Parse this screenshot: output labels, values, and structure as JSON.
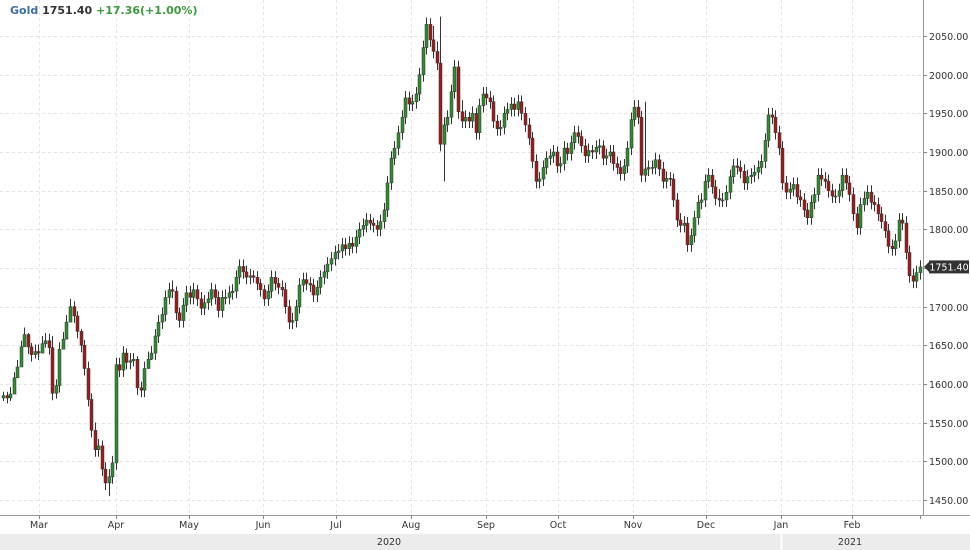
{
  "header": {
    "symbol": "Gold",
    "price": "1751.40",
    "change": "+17.36",
    "change_pct": "(+1.00%)"
  },
  "chart_data": {
    "type": "candlestick",
    "title": "Gold",
    "ylim": [
      1430,
      2090
    ],
    "y_ticks": [
      "2050.00",
      "2000.00",
      "1950.00",
      "1900.00",
      "1850.00",
      "1800.00",
      "1750.00",
      "1700.00",
      "1650.00",
      "1600.00",
      "1550.00",
      "1500.00",
      "1450.00"
    ],
    "y_tick_values": [
      2050,
      2000,
      1950,
      1900,
      1850,
      1800,
      1750,
      1700,
      1650,
      1600,
      1550,
      1500,
      1450
    ],
    "last_price_label": "1751.40",
    "last_price": 1751.4,
    "month_labels": [
      "Mar",
      "Apr",
      "May",
      "Jun",
      "Jul",
      "Aug",
      "Sep",
      "Oct",
      "Nov",
      "Dec",
      "Jan",
      "Feb"
    ],
    "year_labels": [
      "2020",
      "2021"
    ],
    "grid": true,
    "colors": {
      "up": "#2e8b2e",
      "down": "#9b1c1c",
      "wick": "#333333",
      "grid": "#e3e3e3",
      "axis": "#888888",
      "last_bg": "#333333"
    },
    "closes": [
      1585,
      1582,
      1587,
      1608,
      1622,
      1648,
      1664,
      1648,
      1638,
      1642,
      1640,
      1652,
      1656,
      1647,
      1588,
      1598,
      1645,
      1658,
      1680,
      1700,
      1688,
      1668,
      1650,
      1620,
      1580,
      1540,
      1515,
      1520,
      1490,
      1472,
      1480,
      1498,
      1625,
      1618,
      1640,
      1628,
      1630,
      1632,
      1595,
      1592,
      1620,
      1632,
      1640,
      1662,
      1680,
      1690,
      1712,
      1722,
      1720,
      1692,
      1682,
      1702,
      1718,
      1712,
      1722,
      1710,
      1698,
      1705,
      1710,
      1722,
      1712,
      1695,
      1712,
      1712,
      1718,
      1720,
      1738,
      1752,
      1745,
      1738,
      1740,
      1738,
      1730,
      1722,
      1710,
      1720,
      1738,
      1730,
      1725,
      1722,
      1700,
      1680,
      1682,
      1700,
      1728,
      1735,
      1730,
      1728,
      1715,
      1725,
      1738,
      1745,
      1755,
      1762,
      1770,
      1772,
      1780,
      1775,
      1782,
      1778,
      1790,
      1800,
      1805,
      1812,
      1808,
      1805,
      1800,
      1810,
      1825,
      1860,
      1892,
      1905,
      1925,
      1945,
      1970,
      1962,
      1965,
      1975,
      2000,
      2035,
      2065,
      2045,
      2030,
      2015,
      1910,
      1935,
      1945,
      1978,
      2010,
      1952,
      1940,
      1945,
      1940,
      1950,
      1925,
      1960,
      1975,
      1970,
      1965,
      1940,
      1930,
      1932,
      1950,
      1955,
      1962,
      1955,
      1965,
      1950,
      1935,
      1918,
      1888,
      1862,
      1865,
      1880,
      1892,
      1895,
      1900,
      1882,
      1885,
      1905,
      1898,
      1912,
      1925,
      1920,
      1908,
      1895,
      1902,
      1900,
      1906,
      1908,
      1892,
      1895,
      1900,
      1885,
      1880,
      1872,
      1882,
      1905,
      1942,
      1958,
      1945,
      1870,
      1878,
      1880,
      1880,
      1890,
      1878,
      1862,
      1866,
      1865,
      1838,
      1812,
      1805,
      1808,
      1780,
      1792,
      1815,
      1835,
      1838,
      1862,
      1870,
      1855,
      1840,
      1838,
      1838,
      1848,
      1868,
      1882,
      1880,
      1875,
      1860,
      1868,
      1870,
      1874,
      1880,
      1888,
      1915,
      1948,
      1945,
      1925,
      1905,
      1860,
      1848,
      1852,
      1858,
      1842,
      1838,
      1825,
      1815,
      1835,
      1845,
      1870,
      1865,
      1862,
      1850,
      1843,
      1843,
      1850,
      1870,
      1860,
      1845,
      1820,
      1802,
      1832,
      1840,
      1848,
      1835,
      1832,
      1820,
      1810,
      1798,
      1778,
      1775,
      1785,
      1812,
      1808,
      1770,
      1740,
      1733,
      1744,
      1751.4
    ],
    "highs": [
      1590,
      1590,
      1596,
      1615,
      1631,
      1656,
      1673,
      1666,
      1653,
      1651,
      1651,
      1662,
      1666,
      1665,
      1662,
      1606,
      1654,
      1667,
      1689,
      1710,
      1707,
      1694,
      1671,
      1657,
      1629,
      1588,
      1550,
      1529,
      1527,
      1499,
      1490,
      1507,
      1634,
      1634,
      1649,
      1646,
      1640,
      1640,
      1636,
      1603,
      1629,
      1642,
      1649,
      1671,
      1689,
      1699,
      1721,
      1731,
      1734,
      1726,
      1699,
      1711,
      1727,
      1727,
      1731,
      1728,
      1719,
      1715,
      1719,
      1731,
      1729,
      1720,
      1721,
      1722,
      1727,
      1729,
      1747,
      1761,
      1761,
      1753,
      1749,
      1747,
      1746,
      1736,
      1728,
      1729,
      1747,
      1746,
      1737,
      1734,
      1731,
      1709,
      1692,
      1709,
      1737,
      1744,
      1744,
      1738,
      1736,
      1734,
      1747,
      1754,
      1764,
      1771,
      1779,
      1781,
      1789,
      1789,
      1791,
      1790,
      1799,
      1809,
      1814,
      1821,
      1820,
      1815,
      1812,
      1819,
      1834,
      1869,
      1901,
      1914,
      1934,
      1954,
      1979,
      1978,
      1974,
      1984,
      2009,
      2044,
      2074,
      2073,
      2063,
      2043,
      2027,
      1945,
      1954,
      1987,
      2019,
      2018,
      1967,
      1954,
      1952,
      1959,
      1957,
      1969,
      1984,
      1984,
      1979,
      1973,
      1948,
      1941,
      1959,
      1964,
      1971,
      1970,
      1974,
      1973,
      1958,
      1944,
      1926,
      1897,
      1874,
      1889,
      1901,
      1904,
      1909,
      1907,
      1894,
      1914,
      1912,
      1921,
      1934,
      1934,
      1928,
      1917,
      1911,
      1909,
      1915,
      1917,
      1915,
      1904,
      1909,
      1909,
      1894,
      1889,
      1891,
      1914,
      1951,
      1967,
      1967,
      1953,
      1887,
      1889,
      1889,
      1899,
      1897,
      1887,
      1875,
      1874,
      1872,
      1847,
      1821,
      1817,
      1816,
      1801,
      1824,
      1844,
      1847,
      1871,
      1879,
      1878,
      1864,
      1852,
      1847,
      1857,
      1877,
      1891,
      1892,
      1889,
      1884,
      1877,
      1879,
      1883,
      1889,
      1897,
      1924,
      1957,
      1957,
      1954,
      1934,
      1914,
      1869,
      1861,
      1867,
      1867,
      1851,
      1847,
      1834,
      1844,
      1854,
      1879,
      1879,
      1874,
      1871,
      1859,
      1852,
      1859,
      1879,
      1879,
      1869,
      1854,
      1829,
      1841,
      1849,
      1857,
      1857,
      1844,
      1841,
      1829,
      1819,
      1807,
      1787,
      1794,
      1821,
      1821,
      1817,
      1779,
      1749,
      1753,
      1760
    ],
    "lows": [
      1578,
      1575,
      1578,
      1599,
      1613,
      1639,
      1655,
      1639,
      1629,
      1633,
      1631,
      1643,
      1647,
      1638,
      1579,
      1581,
      1589,
      1649,
      1671,
      1691,
      1679,
      1659,
      1641,
      1611,
      1571,
      1531,
      1506,
      1506,
      1481,
      1463,
      1463,
      1471,
      1489,
      1609,
      1609,
      1619,
      1619,
      1623,
      1586,
      1583,
      1583,
      1623,
      1631,
      1631,
      1653,
      1671,
      1681,
      1703,
      1711,
      1683,
      1673,
      1673,
      1693,
      1703,
      1703,
      1701,
      1689,
      1689,
      1696,
      1701,
      1703,
      1686,
      1686,
      1703,
      1703,
      1709,
      1711,
      1729,
      1736,
      1729,
      1729,
      1731,
      1721,
      1713,
      1701,
      1701,
      1711,
      1721,
      1716,
      1713,
      1691,
      1671,
      1671,
      1673,
      1691,
      1719,
      1721,
      1719,
      1706,
      1706,
      1716,
      1729,
      1736,
      1746,
      1753,
      1761,
      1763,
      1766,
      1766,
      1769,
      1769,
      1781,
      1791,
      1796,
      1799,
      1796,
      1791,
      1791,
      1801,
      1816,
      1851,
      1883,
      1896,
      1916,
      1936,
      1953,
      1953,
      1956,
      1966,
      1991,
      2026,
      2036,
      2021,
      2006,
      1901,
      1901,
      1926,
      1936,
      1969,
      1943,
      1931,
      1931,
      1931,
      1931,
      1916,
      1916,
      1951,
      1961,
      1956,
      1931,
      1921,
      1921,
      1923,
      1941,
      1946,
      1946,
      1946,
      1941,
      1926,
      1909,
      1879,
      1853,
      1853,
      1856,
      1871,
      1883,
      1886,
      1873,
      1873,
      1876,
      1889,
      1889,
      1903,
      1911,
      1899,
      1886,
      1886,
      1891,
      1891,
      1897,
      1883,
      1883,
      1886,
      1876,
      1871,
      1863,
      1863,
      1873,
      1896,
      1933,
      1936,
      1861,
      1861,
      1869,
      1871,
      1871,
      1869,
      1853,
      1853,
      1856,
      1829,
      1803,
      1796,
      1796,
      1771,
      1771,
      1783,
      1806,
      1826,
      1829,
      1853,
      1846,
      1831,
      1829,
      1829,
      1829,
      1839,
      1859,
      1871,
      1866,
      1851,
      1851,
      1859,
      1861,
      1865,
      1871,
      1879,
      1906,
      1936,
      1916,
      1896,
      1851,
      1839,
      1839,
      1843,
      1833,
      1829,
      1816,
      1806,
      1806,
      1826,
      1836,
      1856,
      1853,
      1841,
      1834,
      1834,
      1834,
      1841,
      1851,
      1836,
      1811,
      1793,
      1793,
      1823,
      1831,
      1826,
      1823,
      1811,
      1801,
      1789,
      1769,
      1766,
      1766,
      1776,
      1799,
      1761,
      1731,
      1724,
      1724,
      1735
    ],
    "wick_extremes": [
      {
        "index": 30,
        "low": 1455
      },
      {
        "index": 124,
        "high": 2075
      },
      {
        "index": 125,
        "low": 1862
      },
      {
        "index": 182,
        "high": 1965
      },
      {
        "index": 264,
        "low": 1715
      }
    ]
  }
}
